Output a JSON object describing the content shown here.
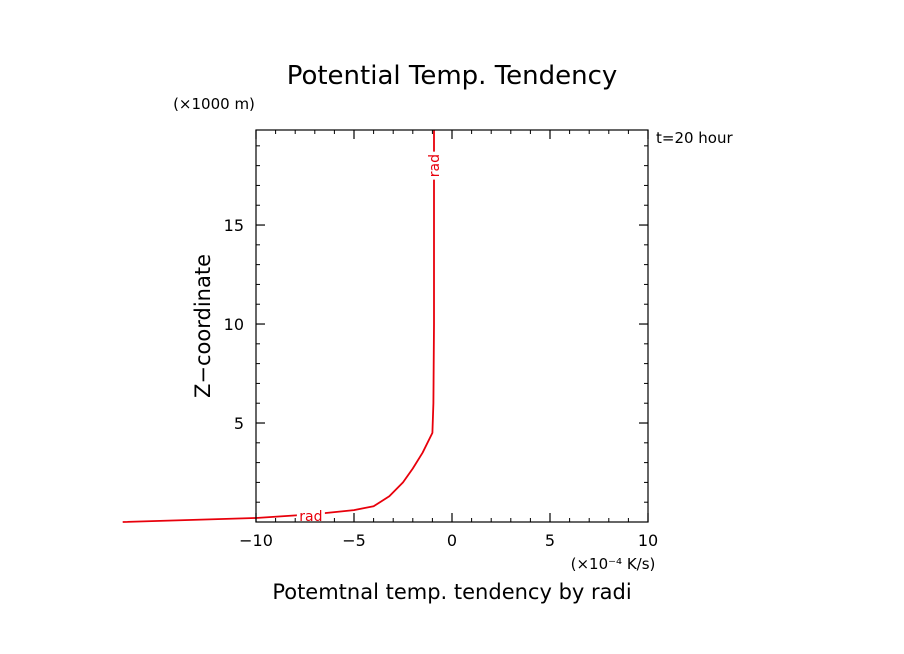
{
  "chart_data": {
    "type": "line",
    "title": "Potential Temp. Tendency",
    "xlabel": "Potemtnal temp. tendency by radi",
    "ylabel": "Z−coordinate",
    "x_units": "(×10⁻⁴ K/s)",
    "y_units": "(×1000 m)",
    "annotation": "t=20 hour",
    "xlim": [
      -10,
      10
    ],
    "ylim": [
      0,
      19.8
    ],
    "x_ticks": [
      -10,
      -5,
      0,
      5,
      10
    ],
    "x_tick_labels": [
      "−10",
      "−5",
      "0",
      "5",
      "10"
    ],
    "y_ticks": [
      5,
      10,
      15
    ],
    "y_tick_labels": [
      "5",
      "10",
      "15"
    ],
    "grid": false,
    "series": [
      {
        "name": "rad",
        "color": "#e8000b",
        "x": [
          -16.8,
          -10.0,
          -7.0,
          -5.0,
          -4.0,
          -3.2,
          -2.5,
          -2.0,
          -1.5,
          -1.0,
          -0.95,
          -0.92,
          -0.92
        ],
        "y": [
          0.0,
          0.2,
          0.4,
          0.6,
          0.8,
          1.3,
          2.0,
          2.7,
          3.5,
          4.5,
          6.0,
          10.0,
          19.8
        ]
      }
    ],
    "line_labels": [
      {
        "series": "rad",
        "text": "rad",
        "x": -7.2,
        "y": 0.3,
        "rotate": false
      },
      {
        "series": "rad",
        "text": "rad",
        "x": -0.92,
        "y": 18.0,
        "rotate": true
      }
    ]
  }
}
